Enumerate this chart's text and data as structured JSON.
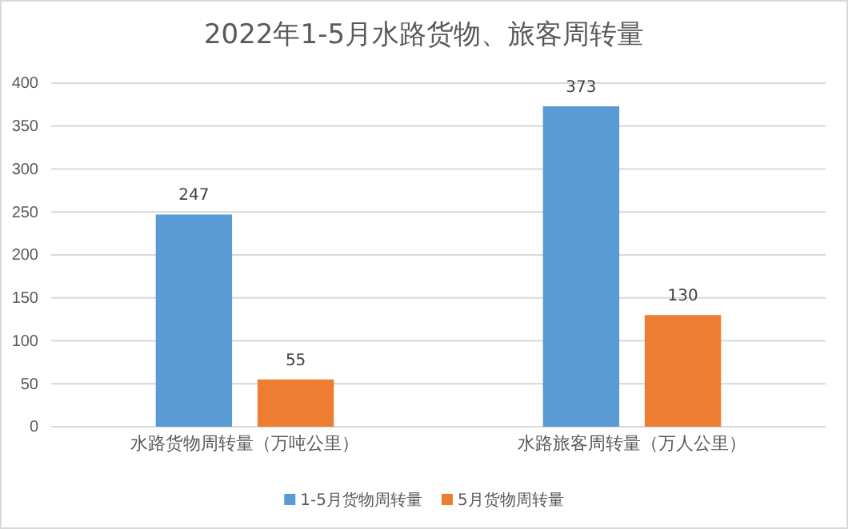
{
  "chart_data": {
    "type": "bar",
    "title": "2022年1-5月水路货物、旅客周转量",
    "categories": [
      "水路货物周转量（万吨公里）",
      "水路旅客周转量（万人公里）"
    ],
    "series": [
      {
        "name": "1-5月货物周转量",
        "color": "#5b9bd5",
        "values": [
          247,
          373
        ]
      },
      {
        "name": "5月货物周转量",
        "color": "#ed7d31",
        "values": [
          55,
          130
        ]
      }
    ],
    "ylim": [
      0,
      400
    ],
    "yticks": [
      0,
      50,
      100,
      150,
      200,
      250,
      300,
      350,
      400
    ],
    "grid": "y",
    "legend": "bottom",
    "data_labels": true
  }
}
